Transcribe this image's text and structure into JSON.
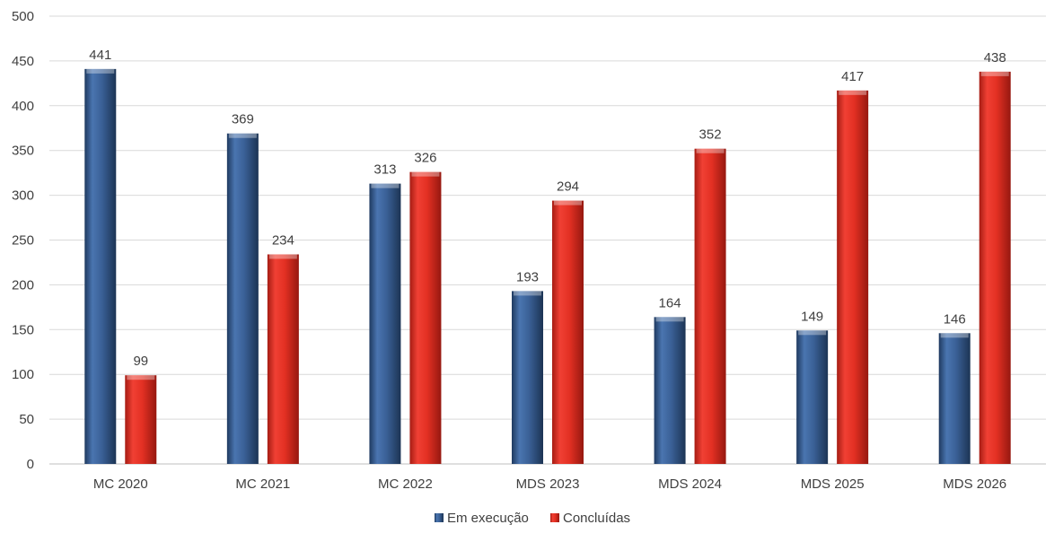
{
  "chart_data": {
    "type": "bar",
    "categories": [
      "MC 2020",
      "MC 2021",
      "MC 2022",
      "MDS 2023",
      "MDS 2024",
      "MDS 2025",
      "MDS 2026"
    ],
    "series": [
      {
        "name": "Em execução",
        "values": [
          441,
          369,
          313,
          193,
          164,
          149,
          146
        ],
        "color": "#3a6096"
      },
      {
        "name": "Concluídas",
        "values": [
          99,
          234,
          326,
          294,
          352,
          417,
          438
        ],
        "color": "#e33023"
      }
    ],
    "ylim": [
      0,
      500
    ],
    "yticks": [
      0,
      50,
      100,
      150,
      200,
      250,
      300,
      350,
      400,
      450,
      500
    ],
    "grid": true,
    "legend_position": "bottom",
    "data_labels": true
  }
}
